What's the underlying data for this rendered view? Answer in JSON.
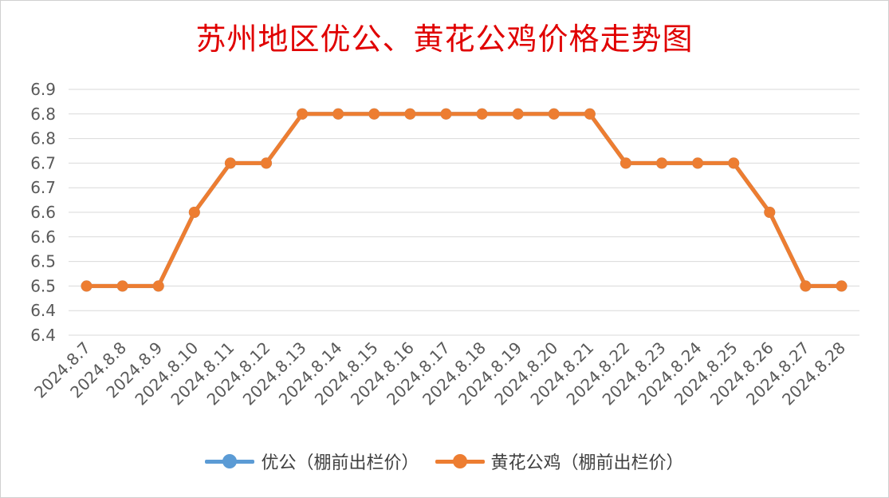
{
  "chart_data": {
    "type": "line",
    "title": "苏州地区优公、黄花公鸡价格走势图",
    "xlabel": "",
    "ylabel": "",
    "categories": [
      "2024.8.7",
      "2024.8.8",
      "2024.8.9",
      "2024.8.10",
      "2024.8.11",
      "2024.8.12",
      "2024.8.13",
      "2024.8.14",
      "2024.8.15",
      "2024.8.16",
      "2024.8.17",
      "2024.8.18",
      "2024.8.19",
      "2024.8.20",
      "2024.8.21",
      "2024.8.22",
      "2024.8.23",
      "2024.8.24",
      "2024.8.25",
      "2024.8.26",
      "2024.8.27",
      "2024.8.28"
    ],
    "yticks": [
      "6.9",
      "6.8",
      "6.8",
      "6.7",
      "6.7",
      "6.6",
      "6.6",
      "6.5",
      "6.5",
      "6.4",
      "6.4"
    ],
    "ylim": [
      6.35,
      6.85
    ],
    "grid": true,
    "legend_position": "bottom",
    "series": [
      {
        "name": "优公（棚前出栏价）",
        "color": "#5b9bd5",
        "values": [
          6.45,
          6.45,
          6.45,
          6.6,
          6.7,
          6.7,
          6.8,
          6.8,
          6.8,
          6.8,
          6.8,
          6.8,
          6.8,
          6.8,
          6.8,
          6.7,
          6.7,
          6.7,
          6.7,
          6.6,
          6.45,
          6.45
        ]
      },
      {
        "name": "黄花公鸡（棚前出栏价）",
        "color": "#ed7d31",
        "values": [
          6.45,
          6.45,
          6.45,
          6.6,
          6.7,
          6.7,
          6.8,
          6.8,
          6.8,
          6.8,
          6.8,
          6.8,
          6.8,
          6.8,
          6.8,
          6.7,
          6.7,
          6.7,
          6.7,
          6.6,
          6.45,
          6.45
        ]
      }
    ]
  }
}
